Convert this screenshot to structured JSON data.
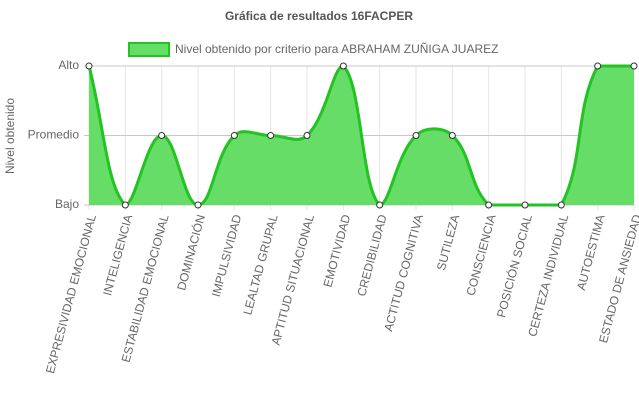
{
  "chart_data": {
    "type": "line",
    "title": "Gráfica de resultados 16FACPER",
    "y_label": "Nivel obtenido",
    "categories": [
      "EXPRESIVIDAD EMOCIONAL",
      "INTELIGENCIA",
      "ESTABILIDAD EMOCIONAL",
      "DOMINACIÓN",
      "IMPULSIVIDAD",
      "LEALTAD GRUPAL",
      "APTITUD SITUACIONAL",
      "EMOTIVIDAD",
      "CREDIBILIDAD",
      "ACTITUD COGNITIVA",
      "SUTILEZA",
      "CONSCIENCIA",
      "POSICIÓN SOCIAL",
      "CERTEZA INDIVIDUAL",
      "AUTOESTIMA",
      "ESTADO DE ANSIEDAD"
    ],
    "series": [
      {
        "name": "Nivel obtenido por criterio para ABRAHAM ZUÑIGA JUAREZ",
        "color": "#22c322",
        "fill": "#66dd66",
        "values": [
          3,
          1,
          2,
          1,
          2,
          2,
          2,
          3,
          1,
          2,
          2,
          1,
          1,
          1,
          3,
          3
        ]
      }
    ],
    "ylim": [
      1,
      3
    ],
    "yticks": [
      {
        "value": 1,
        "label": "Bajo"
      },
      {
        "value": 2,
        "label": "Promedio"
      },
      {
        "value": 3,
        "label": "Alto"
      }
    ],
    "grid": true,
    "legend": "top"
  }
}
